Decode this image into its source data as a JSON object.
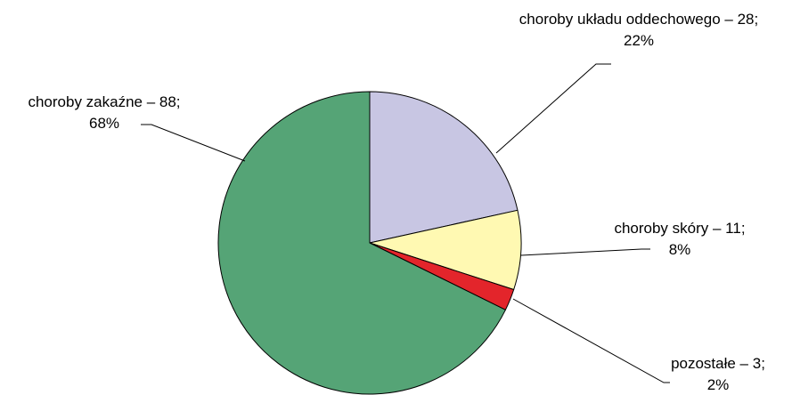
{
  "chart_data": {
    "type": "pie",
    "title": "",
    "slices": [
      {
        "name": "choroby układu oddechowego",
        "value": 28,
        "percent": 22,
        "color": "#c8c6e3",
        "label_line1": "choroby układu oddechowego – 28;",
        "label_line2": "22%"
      },
      {
        "name": "choroby skóry",
        "value": 11,
        "percent": 8,
        "color": "#fff9b2",
        "label_line1": "choroby skóry – 11;",
        "label_line2": "8%"
      },
      {
        "name": "pozostałe",
        "value": 3,
        "percent": 2,
        "color": "#e3252b",
        "label_line1": "pozostałe – 3;",
        "label_line2": "2%"
      },
      {
        "name": "choroby zakaźne",
        "value": 88,
        "percent": 68,
        "color": "#55a476",
        "label_line1": "choroby zakaźne – 88;",
        "label_line2": "68%"
      }
    ],
    "start": "12 o'clock",
    "direction": "clockwise",
    "legend": "none"
  }
}
